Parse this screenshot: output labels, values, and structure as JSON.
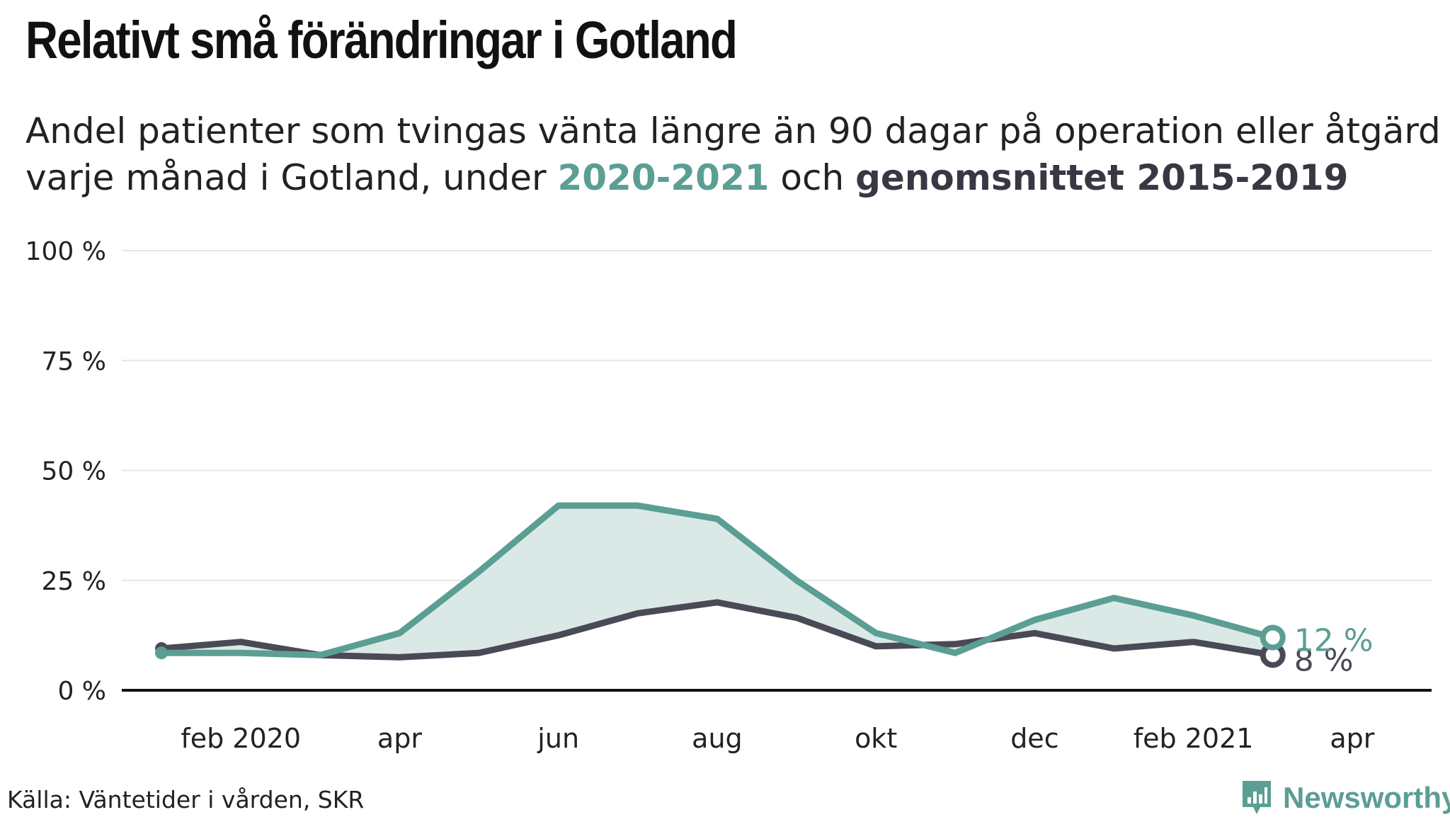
{
  "title": "Relativt små förändringar i Gotland",
  "subtitle": {
    "line1": "Andel patienter som tvingas vänta längre än 90 dagar på operation eller åtgärd",
    "line2_prefix": "varje månad i Gotland, under ",
    "highlight_current": "2020-2021",
    "line2_middle": " och ",
    "highlight_average": "genomsnittet 2015-2019"
  },
  "source": "Källa: Väntetider i vården, SKR",
  "brand": "Newsworthy",
  "colors": {
    "current": "#5b9e94",
    "average": "#4a4a57",
    "fill": "#dbe9e6",
    "grid": "#e6e6e6",
    "axis": "#111111"
  },
  "chart_data": {
    "type": "line",
    "x": [
      "2020-01",
      "2020-02",
      "2020-03",
      "2020-04",
      "2020-05",
      "2020-06",
      "2020-07",
      "2020-08",
      "2020-09",
      "2020-10",
      "2020-11",
      "2020-12",
      "2021-01",
      "2021-02",
      "2021-03"
    ],
    "x_tick_labels": [
      "feb 2020",
      "apr",
      "jun",
      "aug",
      "okt",
      "dec",
      "feb 2021",
      "apr"
    ],
    "x_tick_values": [
      "2020-02",
      "2020-04",
      "2020-06",
      "2020-08",
      "2020-10",
      "2020-12",
      "2021-02",
      "2021-04"
    ],
    "y_tick_labels": [
      "0 %",
      "25 %",
      "50 %",
      "75 %",
      "100 %"
    ],
    "y_tick_values": [
      0,
      25,
      50,
      75,
      100
    ],
    "ylim": [
      0,
      100
    ],
    "xlim": [
      "2019-12-15",
      "2021-05-01"
    ],
    "grid": true,
    "series": [
      {
        "id": "current",
        "values": [
          8.5,
          8.5,
          8,
          13,
          27,
          42,
          42,
          39,
          25,
          13,
          8.5,
          16,
          21,
          17,
          12
        ],
        "end_label": "12 %"
      },
      {
        "id": "average",
        "values": [
          9.5,
          11,
          8,
          7.5,
          8.5,
          12.5,
          17.5,
          20,
          16.5,
          10,
          10.5,
          13,
          9.5,
          11,
          8
        ],
        "end_label": "8 %"
      }
    ],
    "fill_between": true
  }
}
